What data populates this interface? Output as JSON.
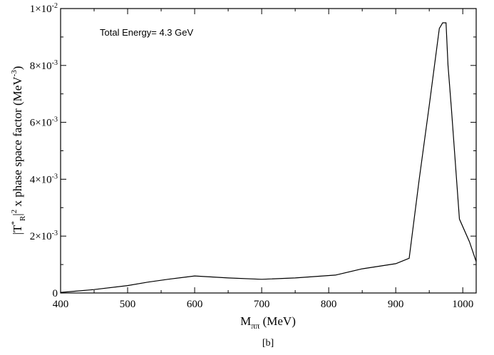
{
  "chart_data": {
    "type": "line",
    "title": "",
    "annotation": "Total Energy= 4.3 GeV",
    "caption": "[b]",
    "xlabel": {
      "base": "M",
      "subscript": "ππ",
      "suffix": " (MeV)"
    },
    "ylabel": {
      "part1": "|T",
      "sup1": "*",
      "sub1": "R",
      "part2": "|",
      "sup2": "2",
      "part3": " x phase space factor (MeV",
      "sup3": "-3",
      "part4": ")"
    },
    "xlim": [
      400,
      1020
    ],
    "ylim": [
      0,
      0.01
    ],
    "x_major_ticks": [
      400,
      500,
      600,
      700,
      800,
      900,
      1000
    ],
    "x_tick_labels": [
      "400",
      "500",
      "600",
      "700",
      "800",
      "900",
      "1000"
    ],
    "y_major_ticks": [
      {
        "value": 0,
        "base": "0",
        "exp": ""
      },
      {
        "value": 0.002,
        "base": "2×10",
        "exp": "-3"
      },
      {
        "value": 0.004,
        "base": "4×10",
        "exp": "-3"
      },
      {
        "value": 0.006,
        "base": "6×10",
        "exp": "-3"
      },
      {
        "value": 0.008,
        "base": "8×10",
        "exp": "-3"
      },
      {
        "value": 0.01,
        "base": "1×10",
        "exp": "-2"
      }
    ],
    "series": [
      {
        "x": [
          400,
          420,
          450,
          500,
          530,
          560,
          600,
          650,
          700,
          750,
          810,
          850,
          900,
          920,
          935,
          950,
          965,
          970,
          975,
          978,
          983,
          995,
          1010,
          1020
        ],
        "y": [
          2e-05,
          6e-05,
          0.00012,
          0.00026,
          0.00038,
          0.00048,
          0.0006,
          0.00053,
          0.00048,
          0.00053,
          0.00063,
          0.00085,
          0.00103,
          0.00122,
          0.004,
          0.0066,
          0.0093,
          0.0095,
          0.0095,
          0.008,
          0.0065,
          0.0026,
          0.0018,
          0.0011
        ]
      }
    ],
    "grid": false,
    "legend": "none"
  }
}
